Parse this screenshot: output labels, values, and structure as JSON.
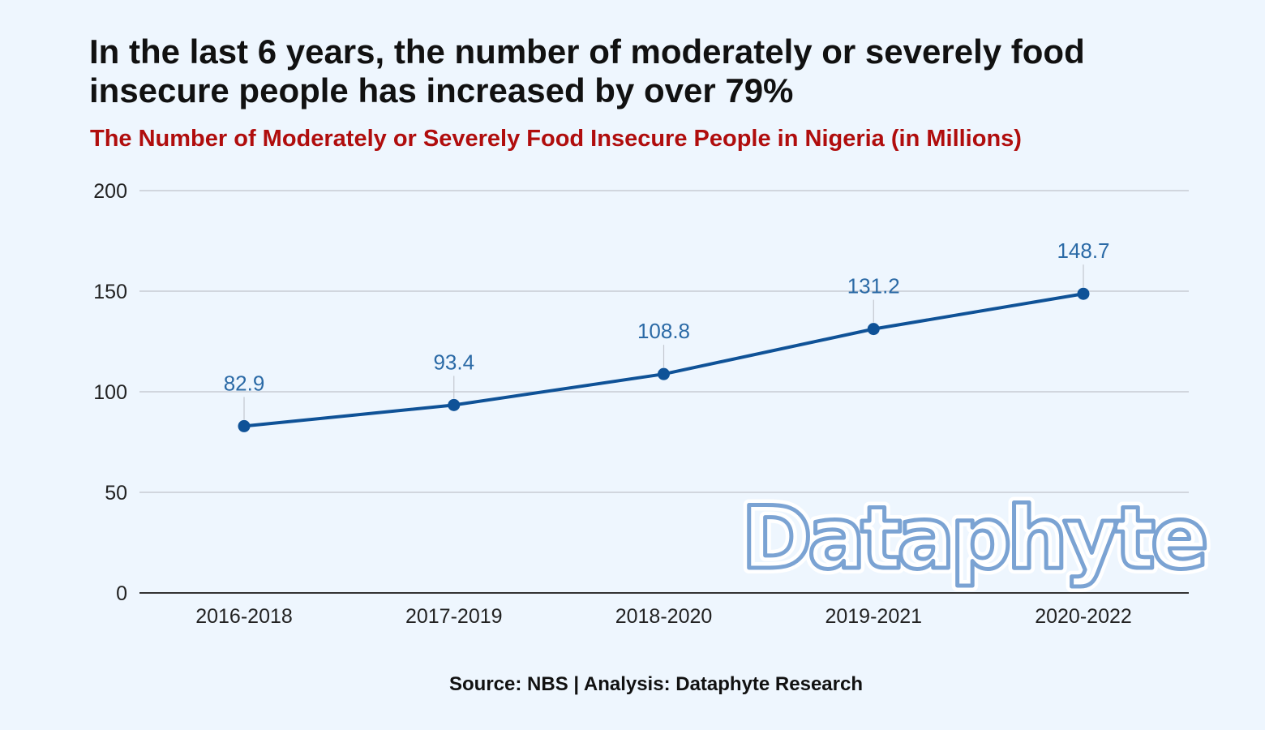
{
  "header": {
    "title": "In the last 6 years, the number of moderately or severely food insecure people has increased by over 79%"
  },
  "footer": {
    "source": "Source: NBS | Analysis: Dataphyte Research"
  },
  "watermark": {
    "text": "Dataphyte",
    "color": "#7ba3d3",
    "outline_color": "#ffffff"
  },
  "colors": {
    "background": "#eef6fe",
    "line": "#0f5297",
    "label": "#2b6aa6",
    "grid": "#c7ccd3",
    "axis": "#333333",
    "subtitle": "#b00d0d"
  },
  "chart_data": {
    "type": "line",
    "title": "The Number of Moderately or Severely Food Insecure People in Nigeria (in Millions)",
    "xlabel": "",
    "ylabel": "",
    "categories": [
      "2016-2018",
      "2017-2019",
      "2018-2020",
      "2019-2021",
      "2020-2022"
    ],
    "series": [
      {
        "values": [
          82.9,
          93.4,
          108.8,
          131.2,
          148.7
        ]
      }
    ],
    "data_labels": [
      "82.9",
      "93.4",
      "108.8",
      "131.2",
      "148.7"
    ],
    "ylim": [
      0,
      200
    ],
    "yticks": [
      0,
      50,
      100,
      150,
      200
    ],
    "grid": true,
    "legend": "none"
  }
}
